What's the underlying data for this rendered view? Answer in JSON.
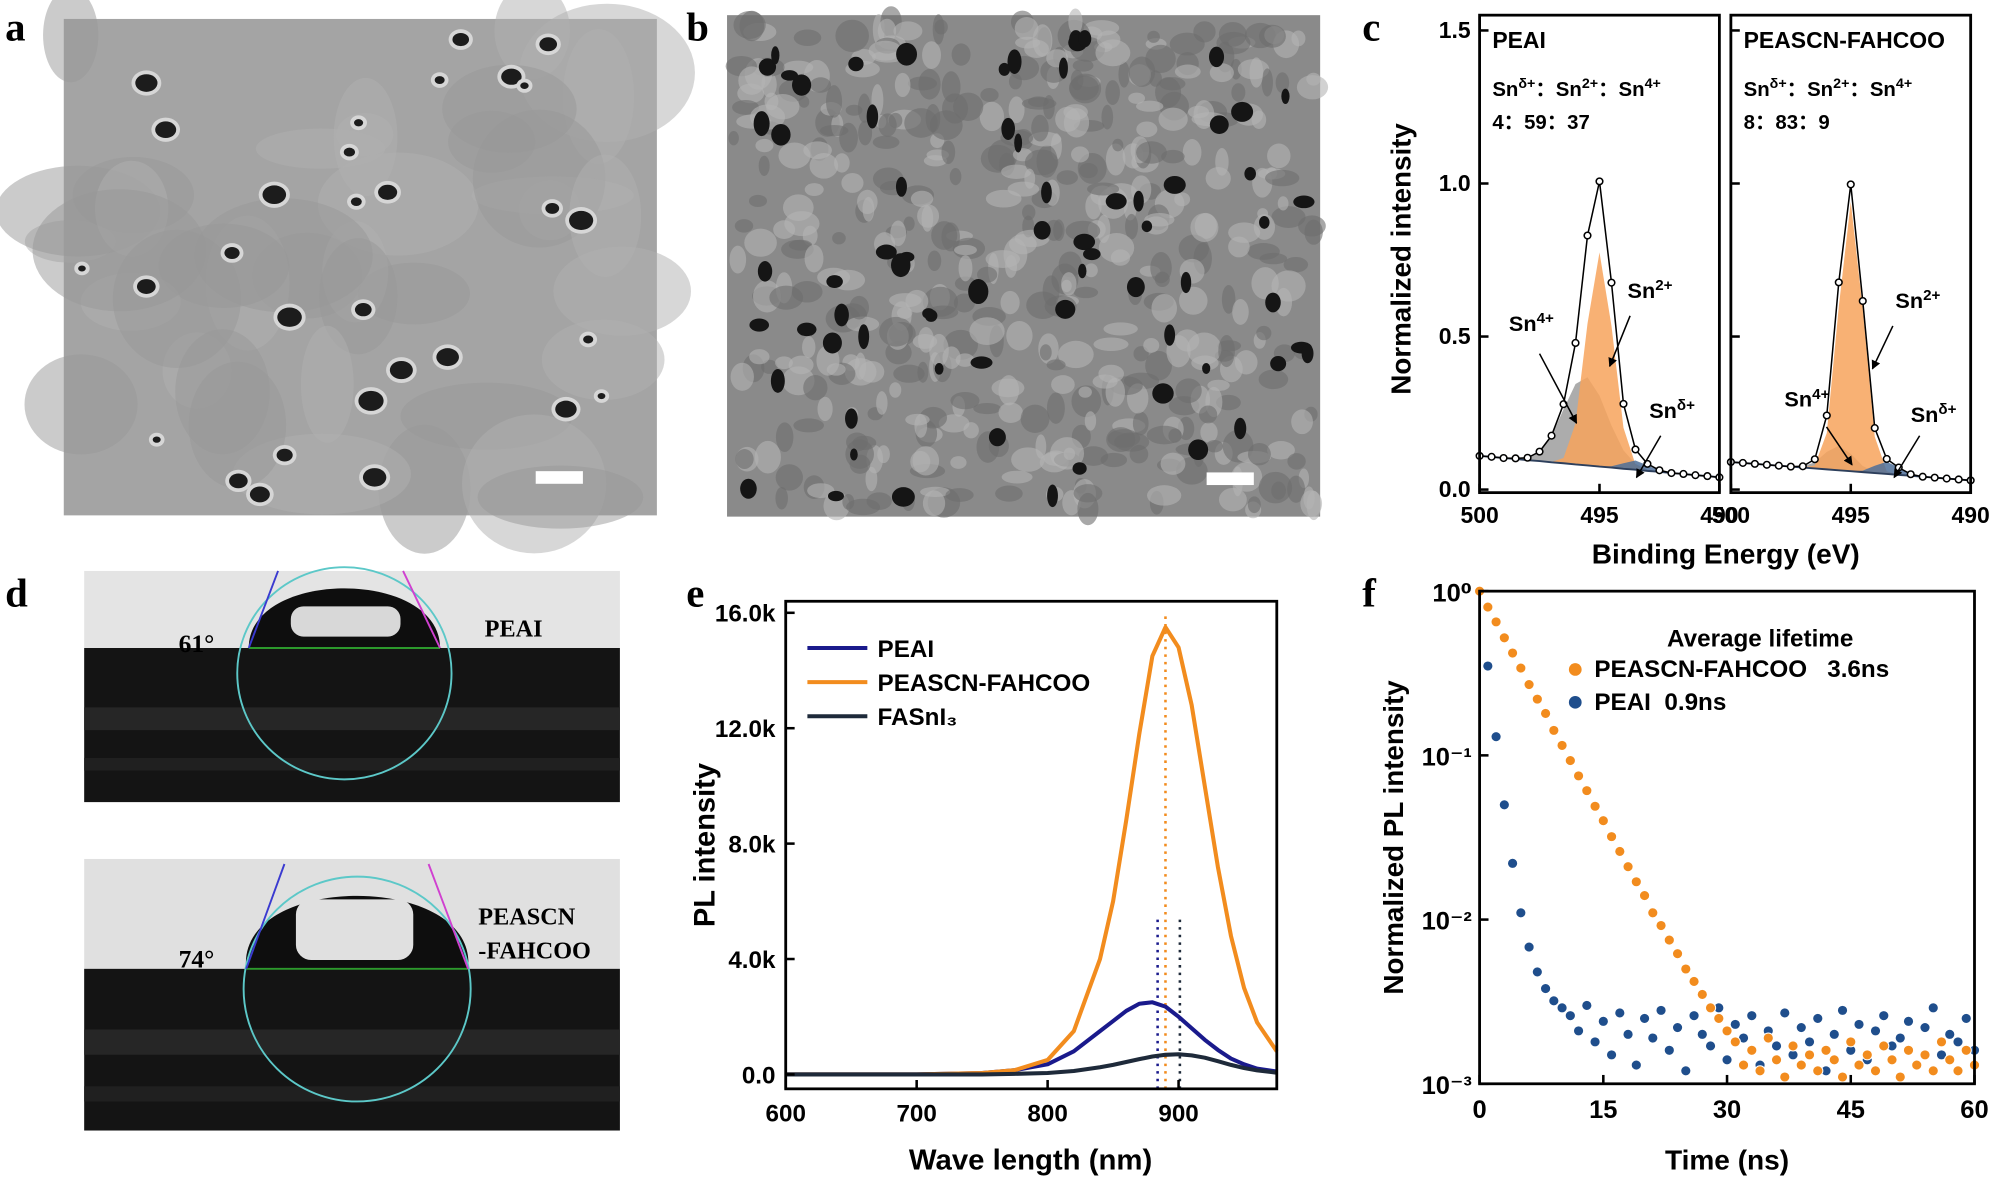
{
  "panels": [
    "a",
    "b",
    "c",
    "d",
    "e",
    "f"
  ],
  "contact_angle": [
    {
      "angle": "61°",
      "label": [
        "PEAI"
      ]
    },
    {
      "angle": "74°",
      "label": [
        "PEASCN",
        "-FAHCOO"
      ]
    }
  ],
  "chart_data": [
    {
      "type": "xps",
      "ylabel": "Normalized intensity",
      "xlabel": "Binding Energy (eV)",
      "xlim": [
        500,
        490
      ],
      "xticks": [
        500,
        495,
        490
      ],
      "ylim": [
        -0.01,
        1.55
      ],
      "yticks": [
        {
          "value": 0,
          "label": "0.0"
        },
        {
          "value": 0.5,
          "label": "0.5"
        },
        {
          "value": 1,
          "label": "1.0"
        },
        {
          "value": 1.5,
          "label": "1.5"
        }
      ],
      "raw_color": "#000000",
      "background_color": "#2d3f5c",
      "separator": "：",
      "x": [
        500,
        499.5,
        499,
        498.5,
        498,
        497.5,
        497,
        496.5,
        496,
        495.5,
        495,
        494.5,
        494,
        493.5,
        493,
        492.5,
        492,
        491.5,
        491,
        490.5,
        490
      ],
      "subplots": [
        {
          "title": "PEAI",
          "title_color": "#1a1a8c",
          "ratio_header": [
            {
              "base": "Sn",
              "sup": "δ+"
            },
            {
              "base": "Sn",
              "sup": "2+"
            },
            {
              "base": "Sn",
              "sup": "4+"
            }
          ],
          "ratio": "4：59：37",
          "raw": [
            0.11,
            0.107,
            0.103,
            0.102,
            0.104,
            0.124,
            0.176,
            0.279,
            0.479,
            0.83,
            1.007,
            0.676,
            0.28,
            0.131,
            0.084,
            0.063,
            0.054,
            0.051,
            0.047,
            0.044,
            0.04
          ],
          "background": [
            0.11,
            0.107,
            0.103,
            0.1,
            0.096,
            0.093,
            0.089,
            0.086,
            0.082,
            0.079,
            0.075,
            0.072,
            0.068,
            0.065,
            0.061,
            0.058,
            0.054,
            0.051,
            0.047,
            0.044,
            0.04
          ],
          "components": [
            {
              "label": {
                "base": "Sn",
                "sup": "4+"
              },
              "color": "#9e9e9e",
              "values": [
                0,
                0,
                0,
                0.002,
                0.008,
                0.031,
                0.086,
                0.176,
                0.263,
                0.288,
                0.232,
                0.137,
                0.06,
                0.019,
                0.004,
                0.001,
                0,
                0,
                0,
                0,
                0
              ]
            },
            {
              "label": {
                "base": "Sn",
                "sup": "2+"
              },
              "color": "#f7a35c",
              "values": [
                0,
                0,
                0,
                0,
                0,
                0,
                0.001,
                0.017,
                0.134,
                0.463,
                0.7,
                0.463,
                0.134,
                0.017,
                0.001,
                0,
                0,
                0,
                0,
                0,
                0
              ]
            },
            {
              "label": {
                "base": "Sn",
                "sup": "δ+"
              },
              "color": "#4d6e99",
              "values": [
                0,
                0,
                0,
                0,
                0,
                0,
                0,
                0,
                0,
                0,
                0,
                0.004,
                0.018,
                0.03,
                0.018,
                0.004,
                0,
                0,
                0,
                0,
                0
              ]
            }
          ]
        },
        {
          "title": "PEASCN-FAHCOO",
          "title_color": "#f28c1e",
          "ratio_header": [
            {
              "base": "Sn",
              "sup": "δ+"
            },
            {
              "base": "Sn",
              "sup": "2+"
            },
            {
              "base": "Sn",
              "sup": "4+"
            }
          ],
          "ratio": "8：83：9",
          "raw": [
            0.09,
            0.087,
            0.084,
            0.081,
            0.078,
            0.075,
            0.076,
            0.099,
            0.242,
            0.677,
            0.997,
            0.616,
            0.201,
            0.1,
            0.072,
            0.05,
            0.042,
            0.039,
            0.036,
            0.033,
            0.03
          ],
          "background": [
            0.09,
            0.087,
            0.084,
            0.081,
            0.078,
            0.075,
            0.072,
            0.069,
            0.066,
            0.063,
            0.06,
            0.057,
            0.054,
            0.051,
            0.048,
            0.045,
            0.042,
            0.039,
            0.036,
            0.033,
            0.03
          ],
          "components": [
            {
              "label": {
                "base": "Sn",
                "sup": "4+"
              },
              "color": "#9e9e9e",
              "values": [
                0,
                0,
                0,
                0,
                0,
                0,
                0.004,
                0.02,
                0.057,
                0.08,
                0.057,
                0.02,
                0.004,
                0,
                0,
                0,
                0,
                0,
                0,
                0,
                0
              ]
            },
            {
              "label": {
                "base": "Sn",
                "sup": "2+"
              },
              "color": "#f7a35c",
              "values": [
                0,
                0,
                0,
                0,
                0,
                0,
                0,
                0.01,
                0.119,
                0.534,
                0.88,
                0.534,
                0.119,
                0.009,
                0,
                0,
                0,
                0,
                0,
                0,
                0
              ]
            },
            {
              "label": {
                "base": "Sn",
                "sup": "δ+"
              },
              "color": "#4d6e99",
              "values": [
                0,
                0,
                0,
                0,
                0,
                0,
                0,
                0,
                0,
                0,
                0,
                0.005,
                0.024,
                0.04,
                0.024,
                0.005,
                0,
                0,
                0,
                0,
                0
              ]
            }
          ]
        }
      ]
    },
    {
      "type": "line",
      "ylabel": "PL intensity",
      "xlabel": "Wave length (nm)",
      "xlim": [
        600,
        975
      ],
      "xticks": [
        600,
        700,
        800,
        900
      ],
      "ylim": [
        -500,
        16400
      ],
      "yticks": [
        {
          "value": 0,
          "label": "0.0"
        },
        {
          "value": 4000,
          "label": "4.0k"
        },
        {
          "value": 8000,
          "label": "8.0k"
        },
        {
          "value": 12000,
          "label": "12.0k"
        },
        {
          "value": 16000,
          "label": "16.0k"
        }
      ],
      "x": [
        600,
        650,
        700,
        750,
        775,
        800,
        820,
        840,
        850,
        860,
        870,
        880,
        890,
        900,
        910,
        920,
        930,
        940,
        950,
        960,
        975
      ],
      "series": [
        {
          "name": "PEAI",
          "color": "#1a1a8c",
          "values": [
            0,
            0,
            0,
            50,
            150,
            350,
            800,
            1500,
            1850,
            2200,
            2450,
            2500,
            2350,
            2000,
            1600,
            1200,
            850,
            550,
            350,
            200,
            100
          ]
        },
        {
          "name": "PEASCN-FAHCOO",
          "color": "#f28c1e",
          "values": [
            0,
            0,
            0,
            50,
            150,
            500,
            1500,
            4000,
            6000,
            8800,
            11800,
            14500,
            15500,
            14800,
            12800,
            10000,
            7200,
            4800,
            3000,
            1800,
            800
          ]
        },
        {
          "name": "FASnI₃",
          "color": "#1e2a3a",
          "values": [
            0,
            0,
            0,
            0,
            20,
            50,
            120,
            250,
            330,
            430,
            530,
            620,
            680,
            700,
            660,
            580,
            460,
            330,
            220,
            140,
            60
          ]
        }
      ],
      "peak_lines": [
        {
          "x": 884,
          "top": 5500,
          "color": "#1a1a8c"
        },
        {
          "x": 890,
          "top": 16000,
          "color": "#f28c1e"
        },
        {
          "x": 901,
          "top": 5500,
          "color": "#1e2a3a"
        }
      ]
    },
    {
      "type": "scatter",
      "log_y": true,
      "ylabel": "Normalized PL intensity",
      "xlabel": "Time (ns)",
      "legend_title": "Average lifetime",
      "xlim": [
        0,
        60
      ],
      "xticks": [
        0,
        15,
        30,
        45,
        60
      ],
      "ylim": [
        0.001,
        1
      ],
      "yticks": [
        {
          "value": 1,
          "label": "10⁰"
        },
        {
          "value": 0.1,
          "label": "10⁻¹"
        },
        {
          "value": 0.01,
          "label": "10⁻²"
        },
        {
          "value": 0.001,
          "label": "10⁻³"
        }
      ],
      "x": [
        0,
        1,
        2,
        3,
        4,
        5,
        6,
        7,
        8,
        9,
        10,
        11,
        12,
        13,
        14,
        15,
        16,
        17,
        18,
        19,
        20,
        21,
        22,
        23,
        24,
        25,
        26,
        27,
        28,
        29,
        30,
        31,
        32,
        33,
        34,
        35,
        36,
        37,
        38,
        39,
        40,
        41,
        42,
        43,
        44,
        45,
        46,
        47,
        48,
        49,
        50,
        51,
        52,
        53,
        54,
        55,
        56,
        57,
        58,
        59,
        60
      ],
      "series": [
        {
          "name": "PEASCN-FAHCOO   3.6ns",
          "color": "#f28c1e",
          "values": [
            1.0,
            0.8,
            0.65,
            0.52,
            0.42,
            0.34,
            0.27,
            0.22,
            0.18,
            0.142,
            0.115,
            0.093,
            0.075,
            0.061,
            0.049,
            0.04,
            0.032,
            0.026,
            0.021,
            0.017,
            0.014,
            0.011,
            0.0092,
            0.0075,
            0.0062,
            0.005,
            0.0042,
            0.0035,
            0.0029,
            0.0025,
            0.0021,
            0.0018,
            0.0013,
            0.0016,
            0.0012,
            0.0019,
            0.0014,
            0.0011,
            0.0017,
            0.0013,
            0.0015,
            0.0012,
            0.0016,
            0.0014,
            0.0011,
            0.0018,
            0.0013,
            0.0015,
            0.0012,
            0.0017,
            0.0014,
            0.0011,
            0.0016,
            0.0013,
            0.0015,
            0.0012,
            0.0018,
            0.0014,
            0.0012,
            0.0016,
            0.0013
          ]
        },
        {
          "name": "PEAI  0.9ns",
          "color": "#1f4e8c",
          "values": [
            1.0,
            0.35,
            0.13,
            0.05,
            0.022,
            0.011,
            0.0068,
            0.0048,
            0.0038,
            0.0032,
            0.0029,
            0.0026,
            0.0021,
            0.003,
            0.0018,
            0.0024,
            0.0015,
            0.0027,
            0.002,
            0.0013,
            0.0025,
            0.0019,
            0.0028,
            0.0016,
            0.0022,
            0.0012,
            0.0026,
            0.002,
            0.0017,
            0.0029,
            0.0014,
            0.0023,
            0.0019,
            0.0026,
            0.0013,
            0.0021,
            0.0017,
            0.0027,
            0.0015,
            0.0022,
            0.0018,
            0.0025,
            0.0012,
            0.002,
            0.0028,
            0.0016,
            0.0023,
            0.0014,
            0.0021,
            0.0026,
            0.0017,
            0.0019,
            0.0024,
            0.0013,
            0.0022,
            0.0029,
            0.0015,
            0.002,
            0.0018,
            0.0025,
            0.0016
          ]
        }
      ]
    }
  ]
}
